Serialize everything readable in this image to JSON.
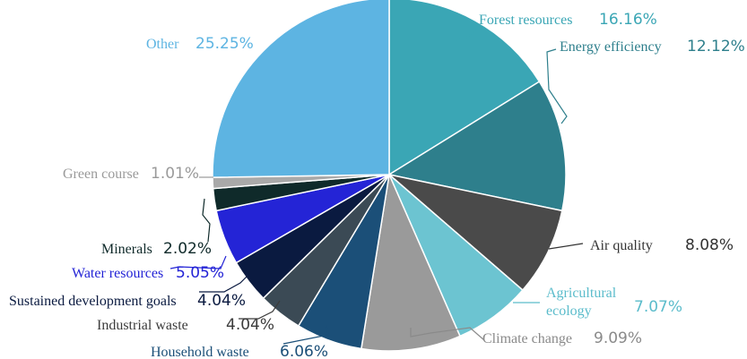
{
  "chart_data": {
    "type": "pie",
    "title": "",
    "slices": [
      {
        "label": "Forest resources",
        "value": 16.16,
        "value_label": "16.16%",
        "color": "#3aa6b5",
        "label_color": "#3aa6b5"
      },
      {
        "label": "Energy efficiency",
        "value": 12.12,
        "value_label": "12.12%",
        "color": "#2e7f8c",
        "label_color": "#2e7f8c"
      },
      {
        "label": "Air quality",
        "value": 8.08,
        "value_label": "8.08%",
        "color": "#4a4a4a",
        "label_color": "#333333"
      },
      {
        "label": "Agricultural ecology",
        "value": 7.07,
        "value_label": "7.07%",
        "color": "#6cc4d1",
        "label_color": "#5bbccb"
      },
      {
        "label": "Climate change",
        "value": 9.09,
        "value_label": "9.09%",
        "color": "#9a9a9a",
        "label_color": "#8a8a8a"
      },
      {
        "label": "Household waste",
        "value": 6.06,
        "value_label": "6.06%",
        "color": "#1b4f78",
        "label_color": "#1b4f78"
      },
      {
        "label": "Industrial waste",
        "value": 4.04,
        "value_label": "4.04%",
        "color": "#3b4a55",
        "label_color": "#3b3b3b"
      },
      {
        "label": "Sustained development goals",
        "value": 4.04,
        "value_label": "4.04%",
        "color": "#0a1a40",
        "label_color": "#0a1a40"
      },
      {
        "label": "Water resources",
        "value": 5.05,
        "value_label": "5.05%",
        "color": "#2424d6",
        "label_color": "#2424d6"
      },
      {
        "label": "Minerals",
        "value": 2.02,
        "value_label": "2.02%",
        "color": "#0f2a2a",
        "label_color": "#0f2a2a"
      },
      {
        "label": "Green course",
        "value": 1.01,
        "value_label": "1.01%",
        "color": "#a9a9a9",
        "label_color": "#9a9a9a"
      },
      {
        "label": "Other",
        "value": 25.25,
        "value_label": "25.25%",
        "color": "#5db4e2",
        "label_color": "#5db4e2"
      }
    ],
    "start": "top, clockwise",
    "legend": "none"
  }
}
